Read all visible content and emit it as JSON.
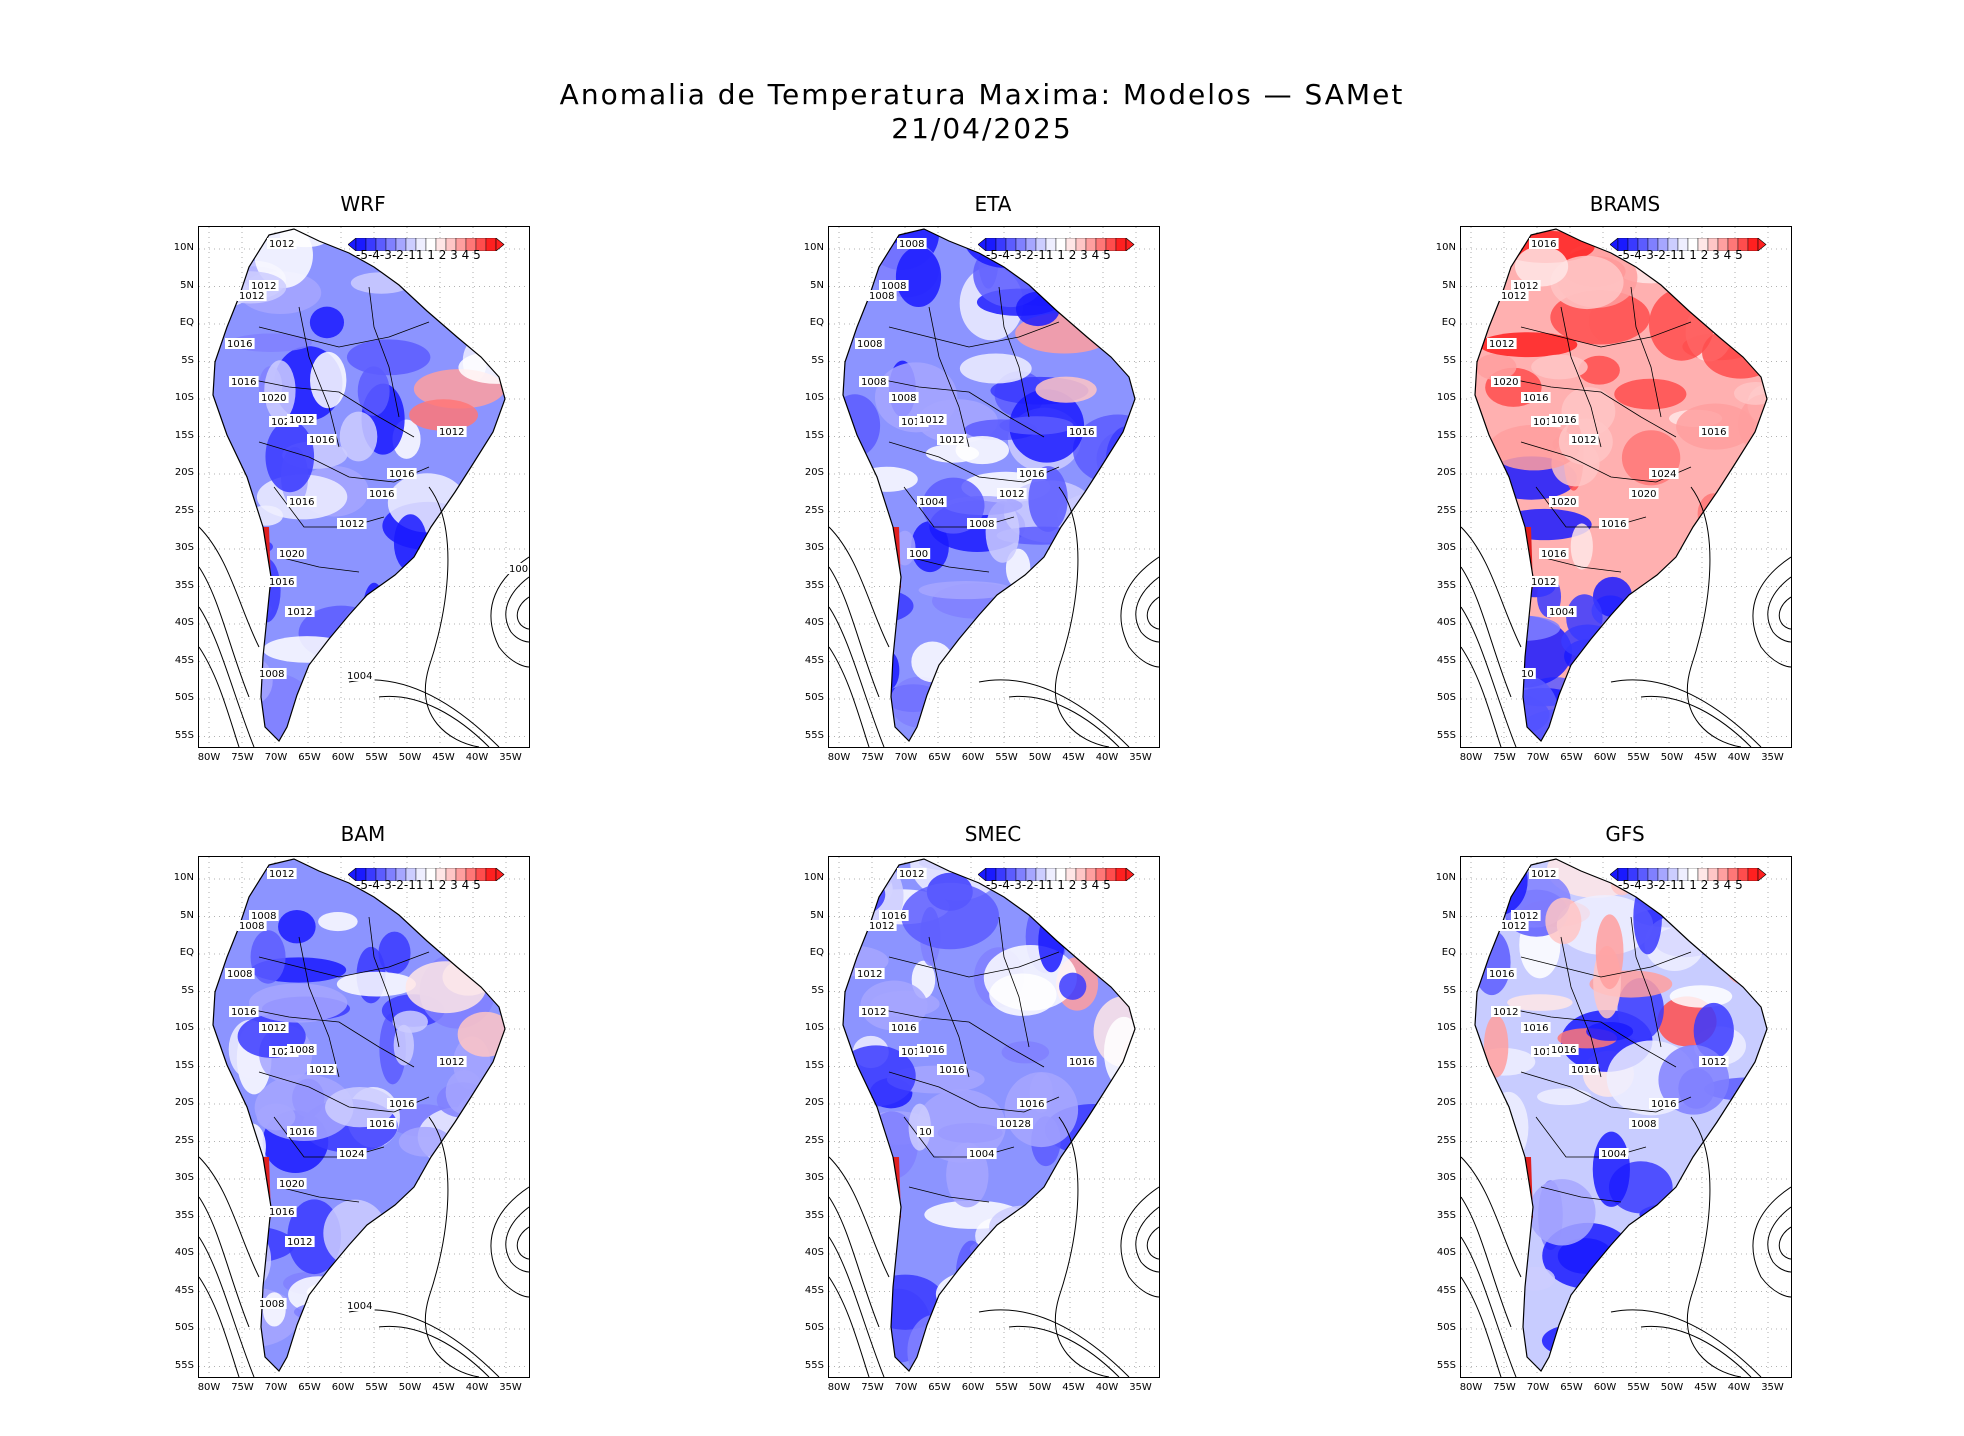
{
  "title": {
    "line1": "Anomalia de Temperatura Maxima: Modelos — SAMet",
    "line2": "21/04/2025"
  },
  "lat_ticks": [
    "10N",
    "5N",
    "EQ",
    "5S",
    "10S",
    "15S",
    "20S",
    "25S",
    "30S",
    "35S",
    "40S",
    "45S",
    "50S",
    "55S"
  ],
  "lon_ticks": [
    "80W",
    "75W",
    "70W",
    "65W",
    "60W",
    "55W",
    "50W",
    "45W",
    "40W",
    "35W"
  ],
  "colorbar": {
    "labels": "-5-4-3-2-11 1 2 3 4 5",
    "colors": [
      "#1a1aff",
      "#3a3aff",
      "#5c5cff",
      "#8080ff",
      "#a6a6ff",
      "#cccdff",
      "#eeeeff",
      "#ffffff",
      "#ffe6e6",
      "#ffc6c6",
      "#ff9f9f",
      "#ff7777",
      "#ff4d4d",
      "#ff2020"
    ]
  },
  "colors": {
    "warm": "#ff4040",
    "cold": "#2020ff",
    "neutral": "#e8ecff"
  },
  "panels": [
    {
      "name": "WRF",
      "tone": "cold",
      "labels": [
        "1012",
        "1012",
        "1012",
        "1016",
        "1016",
        "1020",
        "1020",
        "1012",
        "1016",
        "1012",
        "1016",
        "1016",
        "1012",
        "1016",
        "1020",
        "1016",
        "1012",
        "1008",
        "1004",
        "100"
      ]
    },
    {
      "name": "ETA",
      "tone": "cold",
      "labels": [
        "1008",
        "1008",
        "1008",
        "1008",
        "1008",
        "1008",
        "1012",
        "1012",
        "1012",
        "1016",
        "1016",
        "1012",
        "1008",
        "1004",
        "100"
      ]
    },
    {
      "name": "BRAMS",
      "tone": "warm",
      "labels": [
        "1016",
        "1012",
        "1012",
        "1012",
        "1020",
        "1016",
        "1012",
        "1016",
        "1012",
        "1016",
        "1024",
        "1020",
        "1016",
        "1020",
        "1016",
        "1012",
        "1004",
        "10"
      ]
    },
    {
      "name": "BAM",
      "tone": "cold",
      "labels": [
        "1012",
        "1008",
        "1008",
        "1008",
        "1016",
        "1012",
        "1020",
        "1008",
        "1012",
        "1012",
        "1016",
        "1016",
        "1024",
        "1016",
        "1020",
        "1016",
        "1012",
        "1008",
        "1004"
      ]
    },
    {
      "name": "SMEC",
      "tone": "cold",
      "labels": [
        "1012",
        "1016",
        "1012",
        "1012",
        "1012",
        "1016",
        "1016",
        "1016",
        "1016",
        "1016",
        "1016",
        "10128",
        "1004",
        "10"
      ]
    },
    {
      "name": "GFS",
      "tone": "mixed",
      "labels": [
        "1012",
        "1012",
        "1012",
        "1016",
        "1012",
        "1016",
        "1016",
        "1016",
        "1016",
        "1012",
        "1016",
        "1008",
        "1004"
      ]
    }
  ]
}
